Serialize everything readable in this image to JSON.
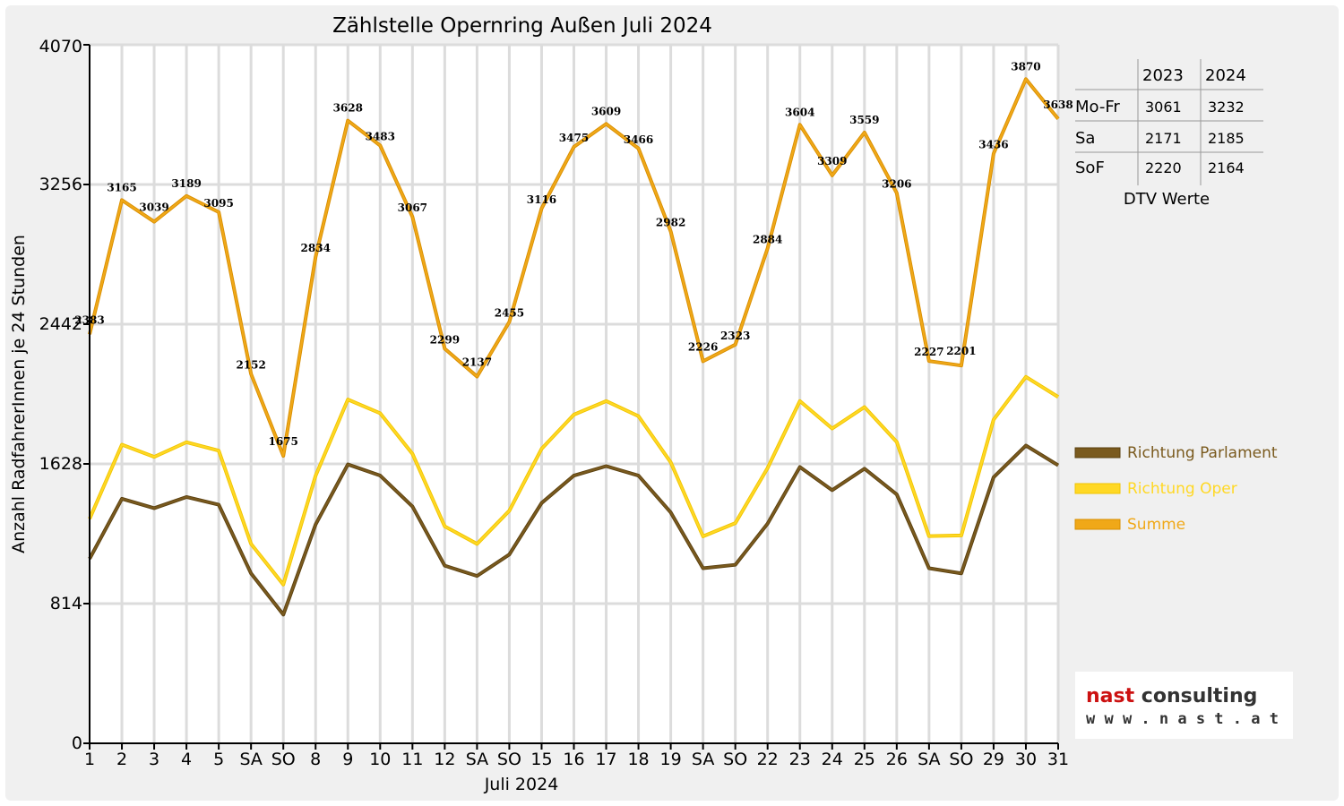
{
  "chart_data": {
    "type": "line",
    "title": "Zählstelle Opernring Außen Juli 2024",
    "ylabel": "Anzahl RadfahrerInnen je 24 Stunden",
    "xlabel": "Juli 2024",
    "ylim": [
      0,
      4070
    ],
    "yticks": [
      0,
      814,
      1628,
      2442,
      3256,
      4070
    ],
    "categories": [
      "1",
      "2",
      "3",
      "4",
      "5",
      "SA",
      "SO",
      "8",
      "9",
      "10",
      "11",
      "12",
      "SA",
      "SO",
      "15",
      "16",
      "17",
      "18",
      "19",
      "SA",
      "SO",
      "22",
      "23",
      "24",
      "25",
      "26",
      "SA",
      "SO",
      "29",
      "30",
      "31"
    ],
    "category_colors": [
      "#000000",
      "#000000",
      "#000000",
      "#000000",
      "#000000",
      "#000000",
      "#e00000",
      "#000000",
      "#000000",
      "#000000",
      "#000000",
      "#000000",
      "#000000",
      "#e00000",
      "#000000",
      "#000000",
      "#000000",
      "#000000",
      "#000000",
      "#000000",
      "#e00000",
      "#000000",
      "#000000",
      "#000000",
      "#000000",
      "#000000",
      "#000000",
      "#e00000",
      "#000000",
      "#000000",
      "#000000"
    ],
    "series": [
      {
        "name": "Richtung Parlament",
        "color": "#7a5a1e",
        "values": [
          1075,
          1425,
          1370,
          1435,
          1390,
          990,
          750,
          1275,
          1625,
          1560,
          1380,
          1035,
          975,
          1100,
          1400,
          1560,
          1615,
          1560,
          1345,
          1020,
          1040,
          1280,
          1610,
          1475,
          1600,
          1450,
          1020,
          990,
          1550,
          1735,
          1620
        ]
      },
      {
        "name": "Richtung Oper",
        "color": "#ffd824",
        "values": [
          1308,
          1740,
          1669,
          1754,
          1705,
          1162,
          925,
          1559,
          2003,
          1923,
          1687,
          1264,
          1162,
          1355,
          1716,
          1915,
          1994,
          1906,
          1637,
          1206,
          1283,
          1604,
          1994,
          1834,
          1959,
          1756,
          1207,
          1211,
          1886,
          2135,
          2018
        ]
      },
      {
        "name": "Summe",
        "color": "#f0a818",
        "values": [
          2383,
          3165,
          3039,
          3189,
          3095,
          2152,
          1675,
          2834,
          3628,
          3483,
          3067,
          2299,
          2137,
          2455,
          3116,
          3475,
          3609,
          3466,
          2982,
          2226,
          2323,
          2884,
          3604,
          3309,
          3559,
          3206,
          2227,
          2201,
          3436,
          3870,
          3638
        ]
      }
    ],
    "grid": true,
    "legend_position": "right"
  },
  "table": {
    "headers": [
      "",
      "2023",
      "2024"
    ],
    "rows": [
      {
        "label": "Mo-Fr",
        "v2023": "3061",
        "v2024": "3232"
      },
      {
        "label": "Sa",
        "v2023": "2171",
        "v2024": "2185"
      },
      {
        "label": "SoF",
        "v2023": "2220",
        "v2024": "2164"
      }
    ],
    "caption": "DTV Werte"
  },
  "logo": {
    "line1_a": "nast",
    "line1_b": " consulting",
    "line2": "w w w . n a s t . a t",
    "color_a": "#cc1111",
    "color_b": "#333333"
  }
}
